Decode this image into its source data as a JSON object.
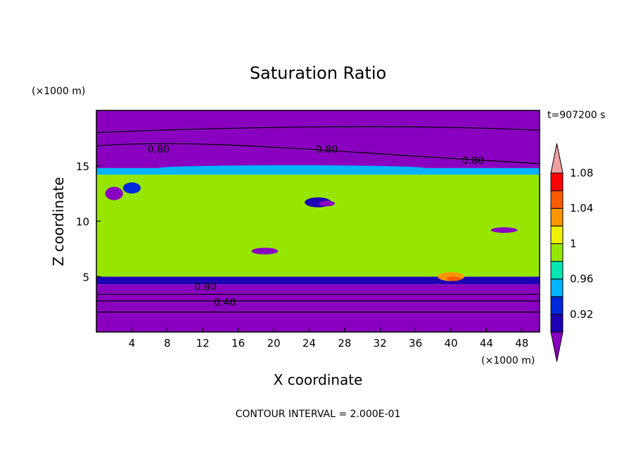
{
  "chart_data": {
    "type": "heatmap",
    "title": "Saturation Ratio",
    "xlabel": "X coordinate",
    "ylabel": "Z coordinate",
    "x_unit": "(×1000 m)",
    "y_unit": "(×1000 m)",
    "time_label": "t=907200 s",
    "footer": "CONTOUR INTERVAL = 2.000E-01",
    "xlim": [
      0,
      50
    ],
    "ylim": [
      0,
      20
    ],
    "xticks": [
      4,
      8,
      12,
      16,
      20,
      24,
      28,
      32,
      36,
      40,
      44,
      48
    ],
    "yticks": [
      5,
      10,
      15
    ],
    "colorbar": {
      "levels": [
        0.9,
        0.92,
        0.94,
        0.96,
        0.98,
        1.0,
        1.02,
        1.04,
        1.06,
        1.08,
        1.1
      ],
      "tick_labels": [
        "0.92",
        "0.96",
        "1",
        "1.04",
        "1.08"
      ],
      "tick_values": [
        0.92,
        0.96,
        1.0,
        1.04,
        1.08
      ],
      "colors": [
        "#8a00c0",
        "#1e00b4",
        "#0028dc",
        "#00b4ff",
        "#00e6b4",
        "#96e600",
        "#f0f000",
        "#ff9600",
        "#ff5a00",
        "#ff0000",
        "#f0a0a0"
      ]
    },
    "contour_lines": [
      {
        "label": "0.80",
        "x": 7,
        "y": 16.5
      },
      {
        "label": "0.80",
        "x": 26,
        "y": 16.5
      },
      {
        "label": "0.80",
        "x": 42.5,
        "y": 15.5
      },
      {
        "label": "0.80",
        "x": 12.3,
        "y": 4.1
      },
      {
        "label": "0.40",
        "x": 14.5,
        "y": 2.7
      }
    ]
  }
}
